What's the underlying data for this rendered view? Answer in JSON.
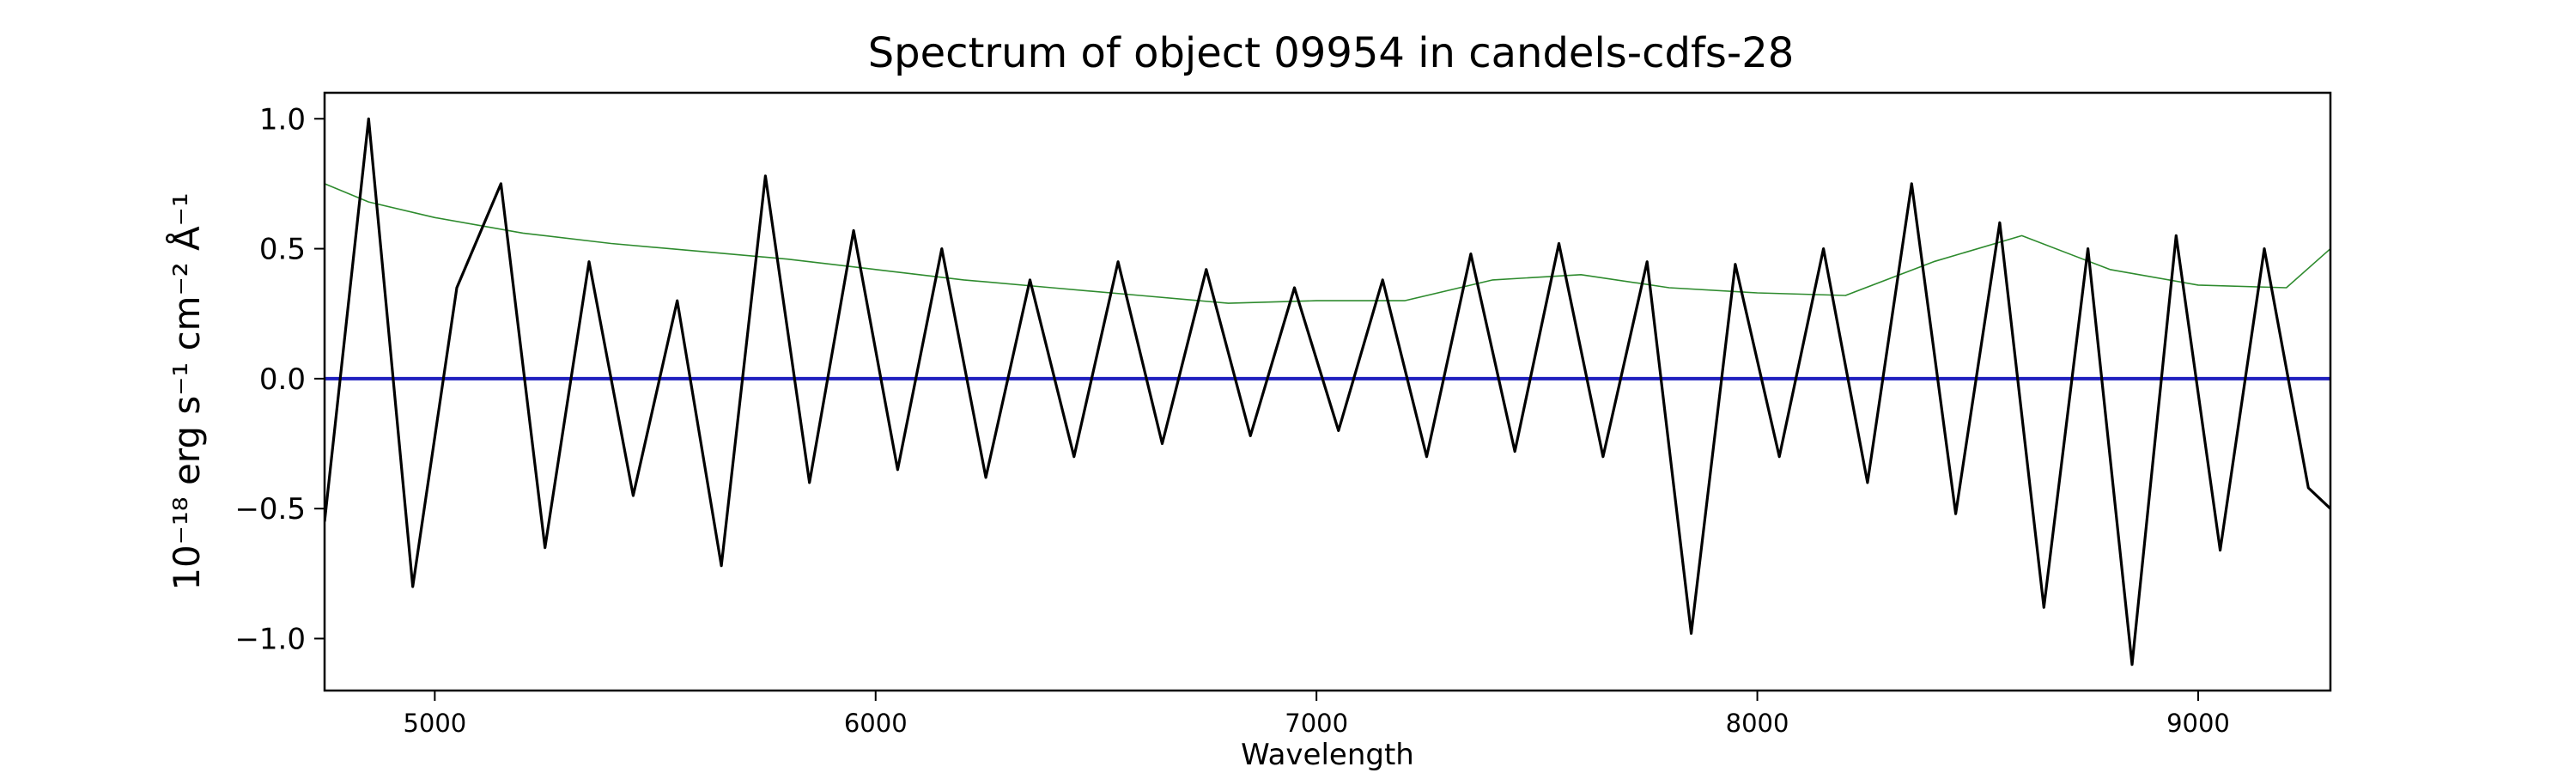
{
  "chart_data": {
    "type": "line",
    "title": "Spectrum of object 09954 in candels-cdfs-28",
    "xlabel": "Wavelength",
    "ylabel": "10⁻¹⁸ erg s⁻¹ cm⁻² Å⁻¹",
    "xlim": [
      4750,
      9300
    ],
    "ylim": [
      -1.2,
      1.1
    ],
    "x_ticks": [
      5000,
      6000,
      7000,
      8000,
      9000
    ],
    "y_ticks": [
      -1.0,
      -0.5,
      0.0,
      0.5,
      1.0
    ],
    "x_tick_labels": [
      "5000",
      "6000",
      "7000",
      "8000",
      "9000"
    ],
    "y_tick_labels": [
      "−1.0",
      "−0.5",
      "0.0",
      "0.5",
      "1.0"
    ],
    "grid": false,
    "series": [
      {
        "role": "flux",
        "color": "#000000",
        "x": [
          4750,
          4850,
          4950,
          5050,
          5150,
          5250,
          5350,
          5450,
          5550,
          5650,
          5750,
          5850,
          5950,
          6050,
          6150,
          6250,
          6350,
          6450,
          6550,
          6650,
          6750,
          6850,
          6950,
          7050,
          7150,
          7250,
          7350,
          7450,
          7550,
          7650,
          7750,
          7850,
          7950,
          8050,
          8150,
          8250,
          8350,
          8450,
          8550,
          8650,
          8750,
          8850,
          8950,
          9050,
          9150,
          9250,
          9300
        ],
        "y": [
          -0.55,
          1.0,
          -0.8,
          0.35,
          0.75,
          -0.65,
          0.45,
          -0.45,
          0.3,
          -0.72,
          0.78,
          -0.4,
          0.57,
          -0.35,
          0.5,
          -0.38,
          0.38,
          -0.3,
          0.45,
          -0.25,
          0.42,
          -0.22,
          0.35,
          -0.2,
          0.38,
          -0.3,
          0.48,
          -0.28,
          0.52,
          -0.3,
          0.45,
          -0.98,
          0.44,
          -0.3,
          0.5,
          -0.4,
          0.75,
          -0.52,
          0.6,
          -0.88,
          0.5,
          -1.1,
          0.55,
          -0.66,
          0.5,
          -0.42,
          -0.5
        ]
      },
      {
        "role": "zero",
        "color": "#1f1fbf",
        "x": [
          4750,
          9300
        ],
        "y": [
          0.0,
          0.0
        ]
      },
      {
        "role": "error",
        "color": "#2e8b2e",
        "x": [
          4750,
          4850,
          5000,
          5200,
          5400,
          5600,
          5800,
          6000,
          6200,
          6400,
          6600,
          6800,
          7000,
          7200,
          7400,
          7600,
          7800,
          8000,
          8200,
          8400,
          8600,
          8800,
          9000,
          9200,
          9300
        ],
        "y": [
          0.75,
          0.68,
          0.62,
          0.56,
          0.52,
          0.49,
          0.46,
          0.42,
          0.38,
          0.35,
          0.32,
          0.29,
          0.3,
          0.3,
          0.38,
          0.4,
          0.35,
          0.33,
          0.32,
          0.45,
          0.55,
          0.42,
          0.36,
          0.35,
          0.5
        ]
      }
    ]
  }
}
